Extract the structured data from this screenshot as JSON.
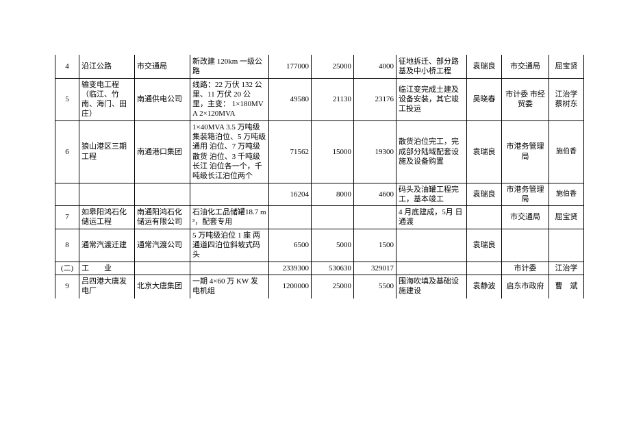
{
  "rows": [
    {
      "num": "4",
      "name": "沿江公路",
      "unit": "市交通局",
      "desc": "新改建 120km 一级公路",
      "v1": "177000",
      "v2": "25000",
      "v3": "4000",
      "goal": "征地拆迁、部分路基及中小桥工程",
      "p1": "袁瑞良",
      "p2": "市交通局",
      "p3": "屈宝贤"
    },
    {
      "num": "5",
      "name": "输变电工程（临江、竹南、海门、田庄）",
      "unit": "南通供电公司",
      "desc": "线路：22 万伏 132 公里、11 万伏 20 公\n里，主变：\n1×180MVA\n2×120MVA",
      "v1": "49580",
      "v2": "21130",
      "v3": "23176",
      "goal": "临江变完成土建及设备安装，其它竣工投运",
      "p1": "吴晓春",
      "p2": "市计委\n市经贸委",
      "p3": "江治学\n蔡树东"
    },
    {
      "num": "6",
      "name": "狼山港区三期工程",
      "unit": "南通港口集团",
      "desc": "1×40MVA\n3.5 万吨级集装箱泊位、5 万吨级通用\n泊位、7 万吨级散货\n泊位、3 千吨级长江\n泊位各一个，千吨级长江泊位两个",
      "v1": "71562",
      "v2": "15000",
      "v3": "19300",
      "goal": "散货泊位完工，完成部分陆域配套设施及设备购置",
      "p1": "袁瑞良",
      "p2": "市港务管理局",
      "p3": "施伯香"
    },
    {
      "num": "",
      "name": "",
      "unit": "",
      "desc": "",
      "v1": "16204",
      "v2": "8000",
      "v3": "4600",
      "goal": "码头及油罐工程完工，基本竣工",
      "p1": "袁瑞良",
      "p2": "市港务管理局",
      "p3": "施伯香"
    },
    {
      "num": "7",
      "name": "如皋阳鸿石化储运工程",
      "unit": "南通阳鸿石化储运有限公司",
      "desc": "石油化工品储罐18.7 m³，配套专用",
      "v1": "",
      "v2": "",
      "v3": "",
      "goal": "4 月底建成，5月\n日通渡",
      "p1": "",
      "p2": "市交通局",
      "p3": "屈宝贤"
    },
    {
      "num": "8",
      "name": "通常汽渡迁建",
      "unit": "通常汽渡公司",
      "desc": "5 万吨级泊位 1 座\n两通道四泊位斜坡式码头",
      "v1": "6500",
      "v2": "5000",
      "v3": "1500",
      "goal": "",
      "p1": "袁瑞良",
      "p2": "",
      "p3": ""
    },
    {
      "num": "(二)",
      "name": "工　　业",
      "unit": "",
      "desc": "",
      "v1": "2339300",
      "v2": "530630",
      "v3": "329017",
      "goal": "",
      "p1": "",
      "p2": "市计委",
      "p3": "江治学"
    },
    {
      "num": "9",
      "name": "吕四港大唐发电厂",
      "unit": "北京大唐集团",
      "desc": "一期 4×60 万 KW 发\n电机组",
      "v1": "1200000",
      "v2": "25000",
      "v3": "5500",
      "goal": "围海吹填及基础设施建设",
      "p1": "袁静波",
      "p2": "启东市政府",
      "p3": "曹　斌"
    }
  ]
}
